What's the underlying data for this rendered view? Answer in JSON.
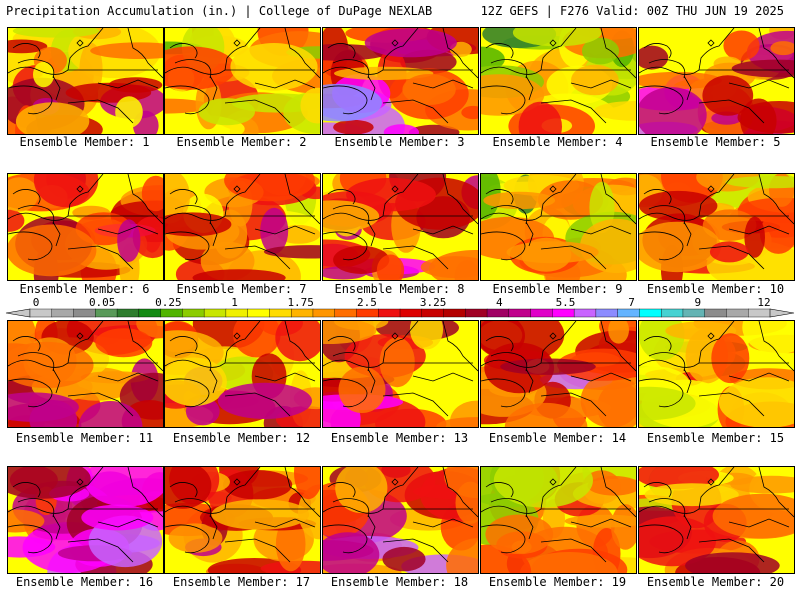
{
  "header": {
    "left": "Precipitation Accumulation (in.) | College of DuPage NEXLAB",
    "right": "12Z GEFS | F276 Valid: 00Z THU JUN 19 2025"
  },
  "legend": {
    "labels": [
      "0",
      "0.05",
      "0.25",
      "1",
      "1.75",
      "2.5",
      "3.25",
      "4",
      "5.5",
      "7",
      "9",
      "12"
    ],
    "colors": [
      "#c8c8c8",
      "#a8a8a8",
      "#8c8c8c",
      "#5a9a5a",
      "#2e7d2e",
      "#138a13",
      "#52b400",
      "#8ccc00",
      "#c8e600",
      "#f0f000",
      "#ffff00",
      "#ffdc00",
      "#ffb400",
      "#ff9600",
      "#ff6e00",
      "#ff3c00",
      "#ee1010",
      "#dd0000",
      "#c80000",
      "#b40000",
      "#a00024",
      "#a00064",
      "#c0008c",
      "#e000c8",
      "#ff00ff",
      "#c864ff",
      "#8c8cff",
      "#64b4ff",
      "#00ffff",
      "#46d2d2",
      "#64b4b4",
      "#8c8c8c",
      "#a8a8a8",
      "#c8c8c8"
    ]
  },
  "members": [
    {
      "label": "Ensemble Member: 1",
      "intensity": 0.55
    },
    {
      "label": "Ensemble Member: 2",
      "intensity": 0.4
    },
    {
      "label": "Ensemble Member: 3",
      "intensity": 0.75
    },
    {
      "label": "Ensemble Member: 4",
      "intensity": 0.3
    },
    {
      "label": "Ensemble Member: 5",
      "intensity": 0.7
    },
    {
      "label": "Ensemble Member: 6",
      "intensity": 0.6
    },
    {
      "label": "Ensemble Member: 7",
      "intensity": 0.55
    },
    {
      "label": "Ensemble Member: 8",
      "intensity": 0.65
    },
    {
      "label": "Ensemble Member: 9",
      "intensity": 0.3
    },
    {
      "label": "Ensemble Member: 10",
      "intensity": 0.55
    },
    {
      "label": "Ensemble Member: 11",
      "intensity": 0.6
    },
    {
      "label": "Ensemble Member: 12",
      "intensity": 0.55
    },
    {
      "label": "Ensemble Member: 13",
      "intensity": 0.6
    },
    {
      "label": "Ensemble Member: 14",
      "intensity": 0.7
    },
    {
      "label": "Ensemble Member: 15",
      "intensity": 0.4
    },
    {
      "label": "Ensemble Member: 16",
      "intensity": 0.75
    },
    {
      "label": "Ensemble Member: 17",
      "intensity": 0.6
    },
    {
      "label": "Ensemble Member: 18",
      "intensity": 0.65
    },
    {
      "label": "Ensemble Member: 19",
      "intensity": 0.45
    },
    {
      "label": "Ensemble Member: 20",
      "intensity": 0.5
    }
  ]
}
